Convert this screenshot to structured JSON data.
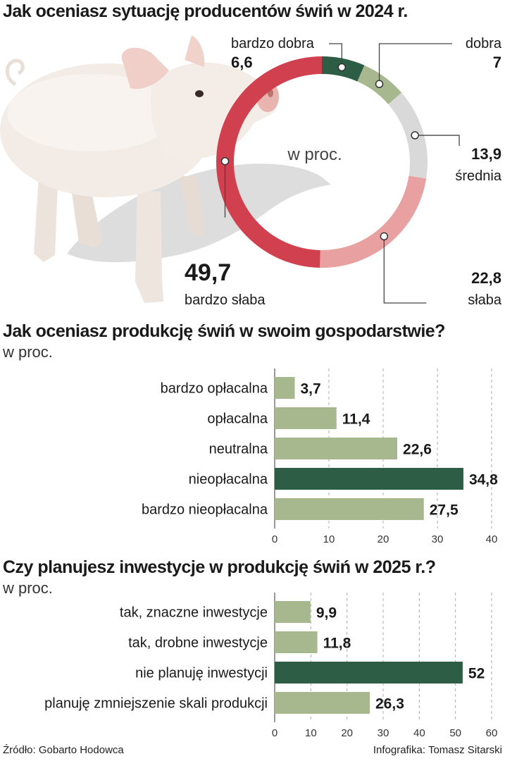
{
  "chart_data": [
    {
      "type": "pie",
      "title": "Jak oceniasz sytuację producentów świń w 2024 r.",
      "center_label": "w proc.",
      "categories": [
        "bardzo dobra",
        "dobra",
        "średnia",
        "słaba",
        "bardzo słaba"
      ],
      "values": [
        6.6,
        7,
        13.9,
        22.8,
        49.7
      ],
      "value_labels": [
        "6,6",
        "7",
        "13,9",
        "22,8",
        "49,7"
      ],
      "colors": [
        "#2e5d45",
        "#a7b88e",
        "#d9d9d9",
        "#e8a0a0",
        "#d1404f"
      ]
    },
    {
      "type": "bar",
      "title": "Jak oceniasz produkcję świń w swoim gospodarstwie?",
      "unit_label": "w proc.",
      "categories": [
        "bardzo opłacalna",
        "opłacalna",
        "neutralna",
        "nieopłacalna",
        "bardzo nieopłacalna"
      ],
      "values": [
        3.7,
        11.4,
        22.6,
        34.8,
        27.5
      ],
      "value_labels": [
        "3,7",
        "11,4",
        "22,6",
        "34,8",
        "27,5"
      ],
      "highlight_index": 3,
      "xlim": [
        0,
        40
      ],
      "xticks": [
        "0",
        "10",
        "20",
        "30",
        "40"
      ]
    },
    {
      "type": "bar",
      "title": "Czy planujesz inwestycje w produkcję świń w 2025 r.?",
      "unit_label": "w proc.",
      "categories": [
        "tak, znaczne inwestycje",
        "tak, drobne inwestycje",
        "nie planuję inwestycji",
        "planuję zmniejszenie skali produkcji"
      ],
      "values": [
        9.9,
        11.8,
        52,
        26.3
      ],
      "value_labels": [
        "9,9",
        "11,8",
        "52",
        "26,3"
      ],
      "highlight_index": 2,
      "xlim": [
        0,
        60
      ],
      "xticks": [
        "0",
        "10",
        "20",
        "30",
        "40",
        "50",
        "60"
      ]
    }
  ],
  "colors": {
    "bar": "#a7b88e",
    "highlight": "#2e5d45"
  },
  "footer": {
    "source": "Źródło: Gobarto Hodowca",
    "credit": "Infografika: Tomasz Sitarski"
  }
}
